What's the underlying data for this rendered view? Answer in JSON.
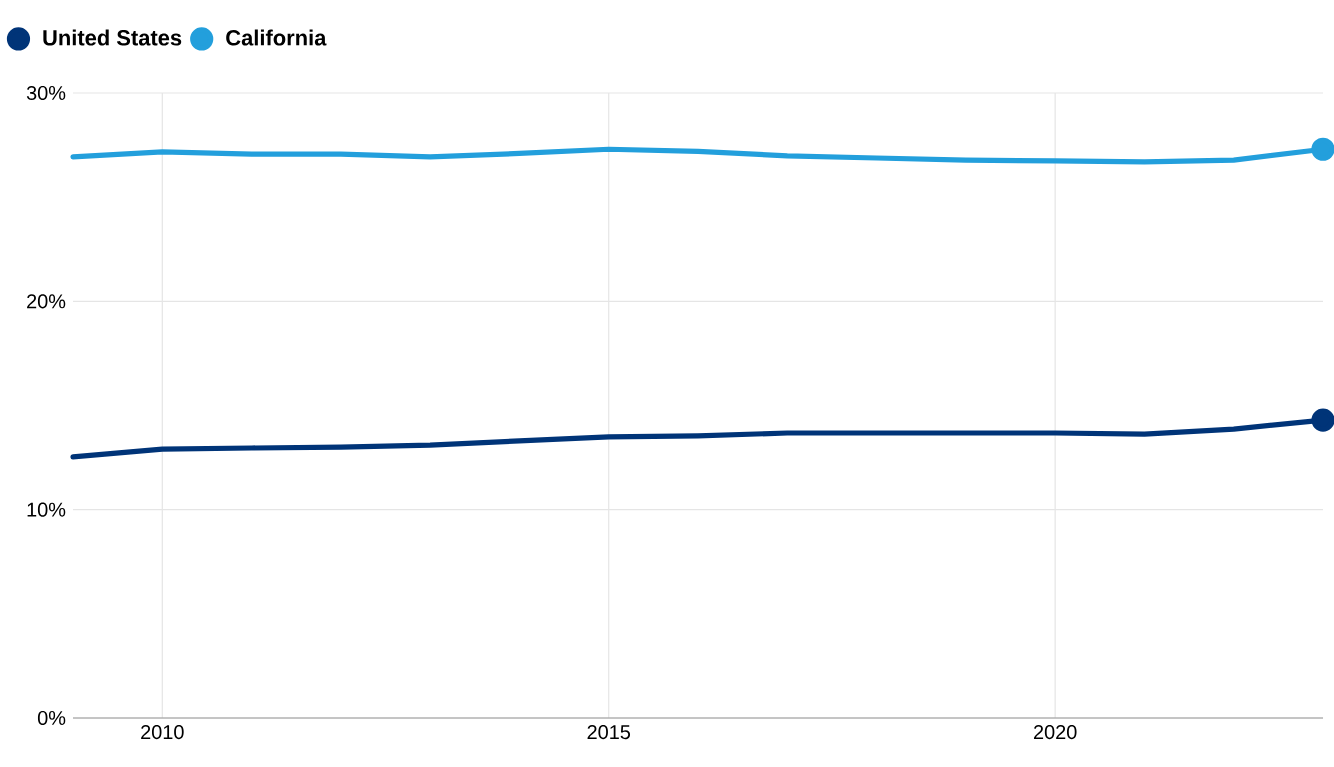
{
  "chart_data": {
    "type": "line",
    "x": [
      2009,
      2010,
      2011,
      2012,
      2013,
      2014,
      2015,
      2016,
      2017,
      2018,
      2019,
      2020,
      2021,
      2022,
      2023
    ],
    "series": [
      {
        "name": "United States",
        "color": "#003478",
        "values": [
          12.53,
          12.91,
          12.96,
          13.0,
          13.1,
          13.3,
          13.49,
          13.54,
          13.68,
          13.68,
          13.68,
          13.68,
          13.63,
          13.87,
          14.3
        ]
      },
      {
        "name": "California",
        "color": "#239fdc",
        "values": [
          26.93,
          27.17,
          27.07,
          27.07,
          26.93,
          27.1,
          27.3,
          27.2,
          26.98,
          26.88,
          26.78,
          26.74,
          26.69,
          26.78,
          27.3
        ]
      }
    ],
    "xlim": [
      2009,
      2023
    ],
    "ylim": [
      0,
      30
    ],
    "xticks": [
      2010,
      2015,
      2020
    ],
    "yticks": [
      {
        "value": 0,
        "label": "0%"
      },
      {
        "value": 10,
        "label": "10%"
      },
      {
        "value": 20,
        "label": "20%"
      },
      {
        "value": 30,
        "label": "30%"
      }
    ],
    "grid": true,
    "legend": "top left",
    "line_style": "solid"
  }
}
